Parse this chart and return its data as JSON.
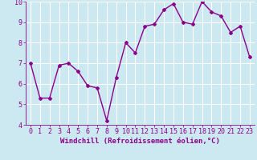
{
  "x": [
    0,
    1,
    2,
    3,
    4,
    5,
    6,
    7,
    8,
    9,
    10,
    11,
    12,
    13,
    14,
    15,
    16,
    17,
    18,
    19,
    20,
    21,
    22,
    23
  ],
  "y": [
    7.0,
    5.3,
    5.3,
    6.9,
    7.0,
    6.6,
    5.9,
    5.8,
    4.2,
    6.3,
    8.0,
    7.5,
    8.8,
    8.9,
    9.6,
    9.9,
    9.0,
    8.9,
    10.0,
    9.5,
    9.3,
    8.5,
    8.8,
    7.3
  ],
  "line_color": "#8b008b",
  "marker": "D",
  "marker_size": 2,
  "bg_color": "#cce8f0",
  "grid_color": "#ffffff",
  "xlabel": "Windchill (Refroidissement éolien,°C)",
  "xlim": [
    -0.5,
    23.5
  ],
  "ylim": [
    4,
    10
  ],
  "yticks": [
    4,
    5,
    6,
    7,
    8,
    9,
    10
  ],
  "xticks": [
    0,
    1,
    2,
    3,
    4,
    5,
    6,
    7,
    8,
    9,
    10,
    11,
    12,
    13,
    14,
    15,
    16,
    17,
    18,
    19,
    20,
    21,
    22,
    23
  ],
  "xlabel_fontsize": 6.5,
  "tick_fontsize": 6,
  "line_width": 1.0
}
